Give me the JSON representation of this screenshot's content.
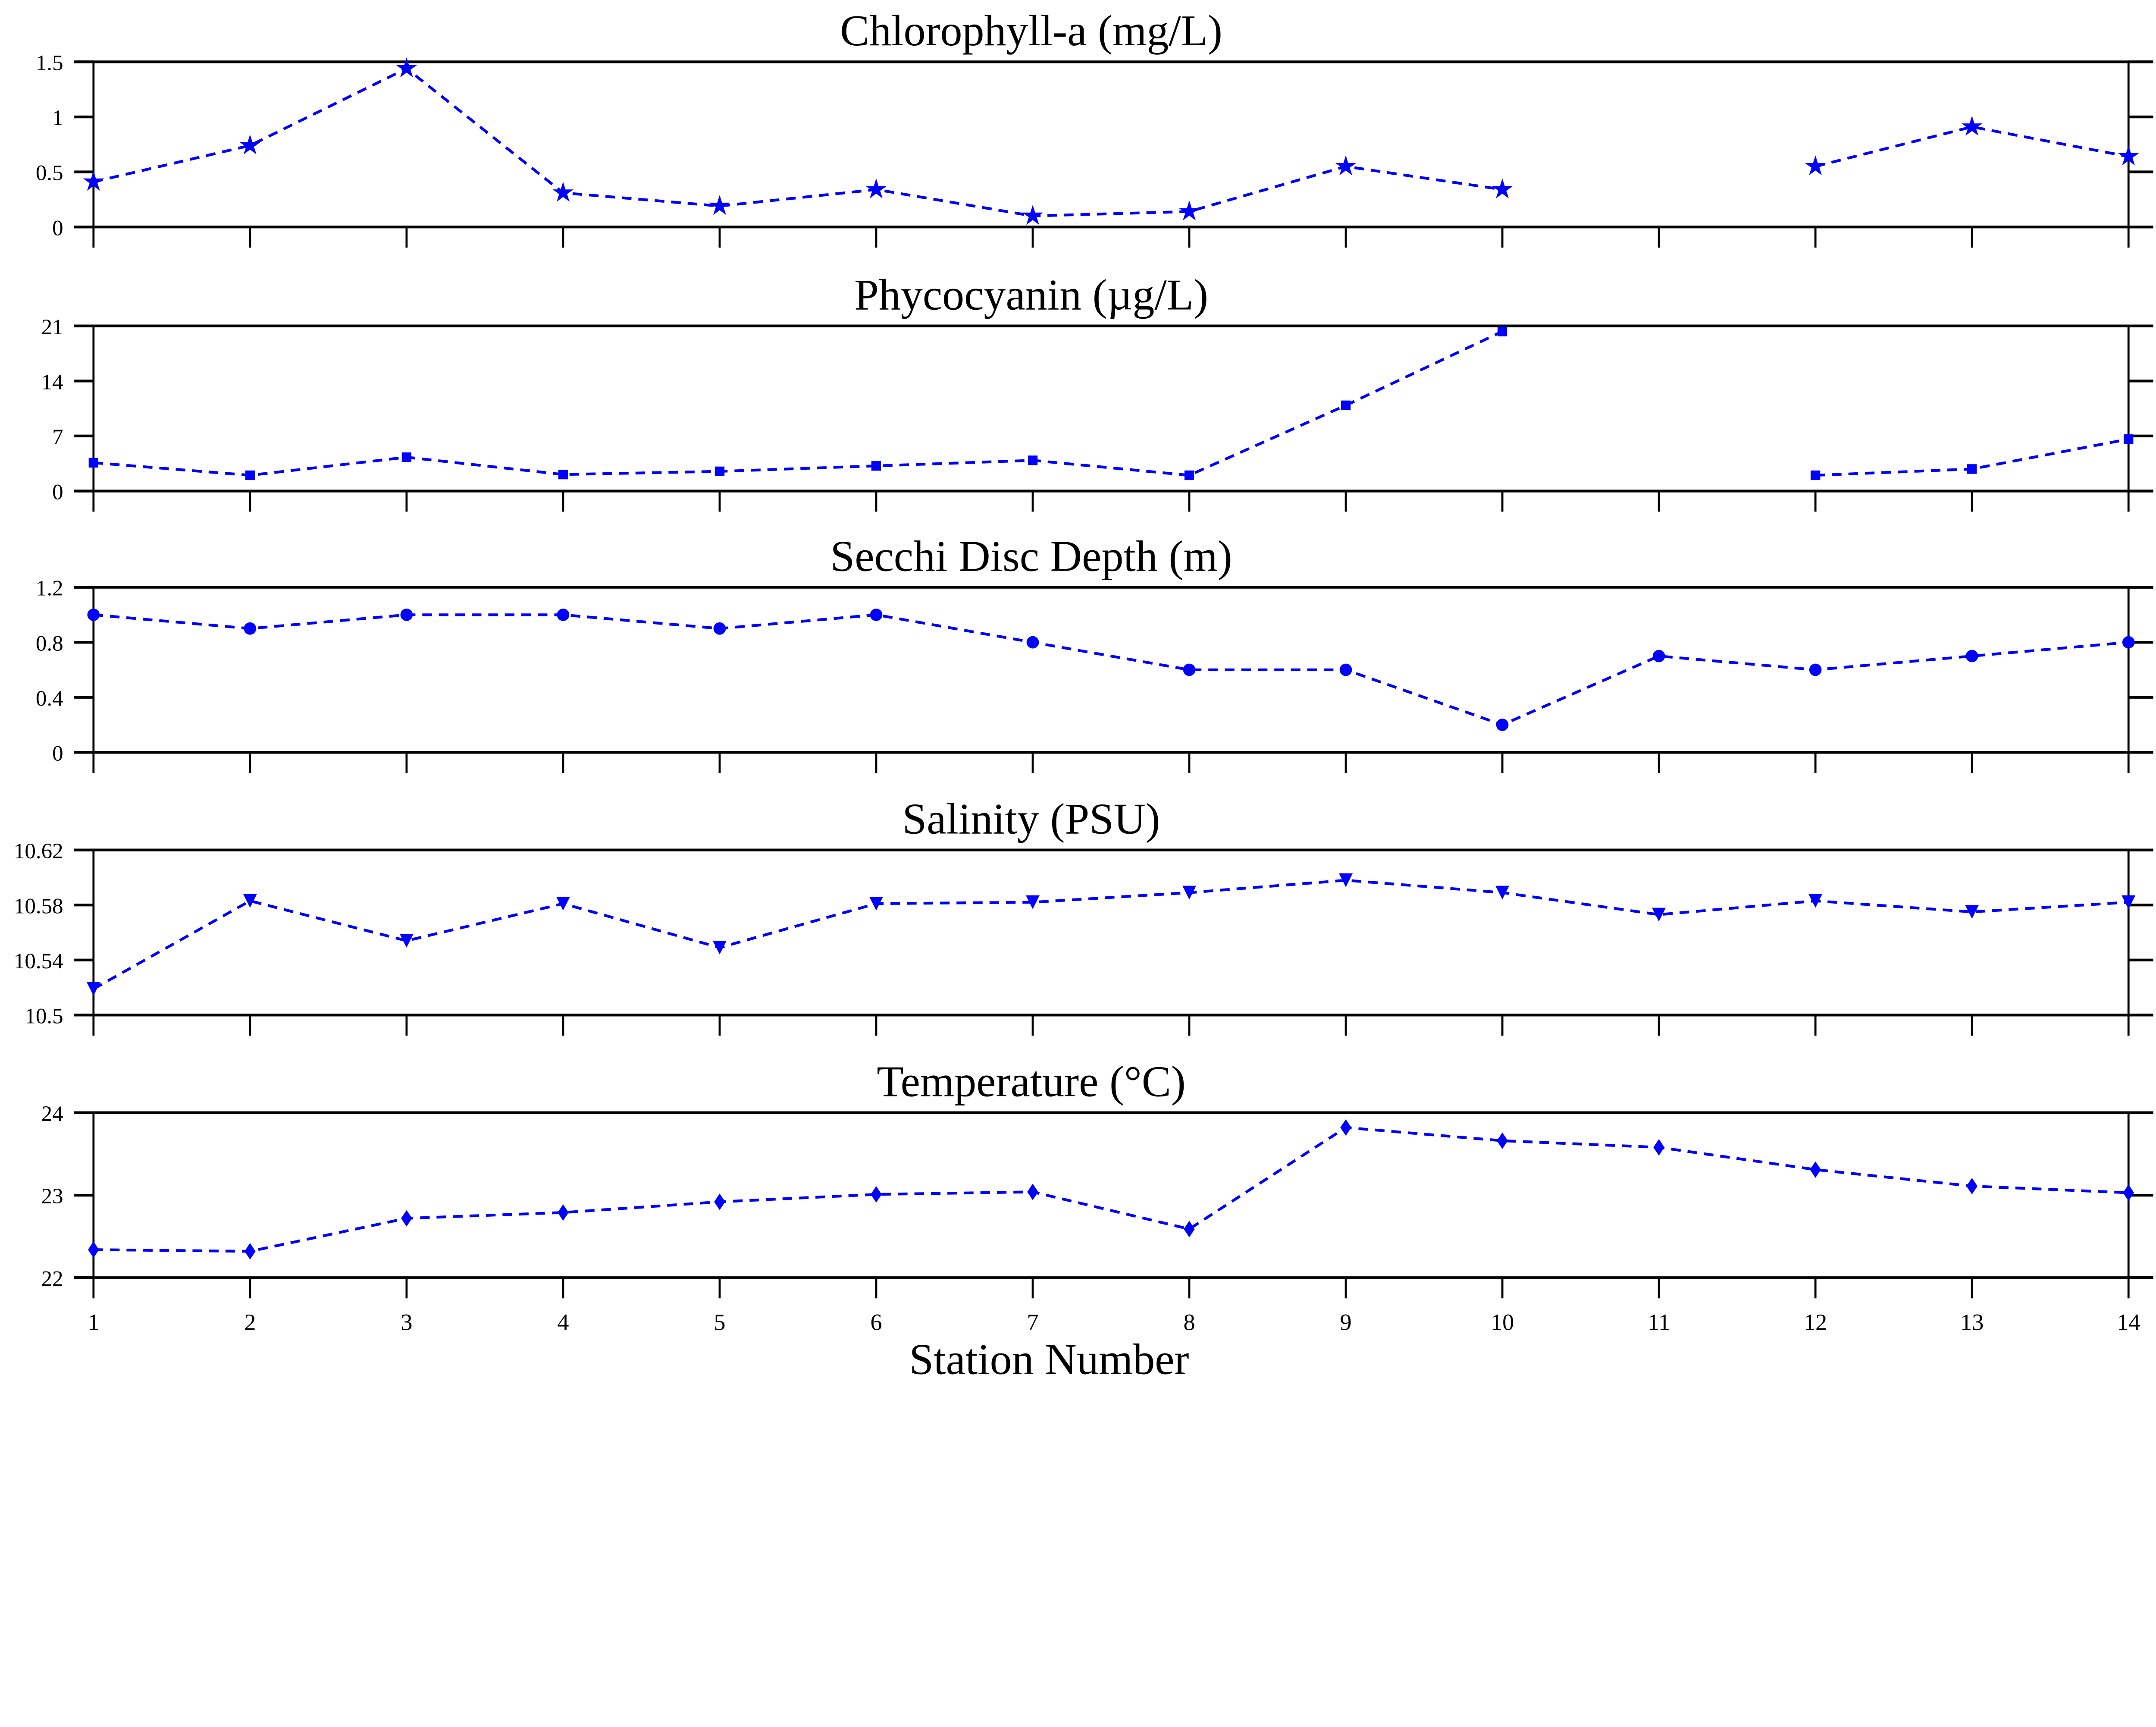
{
  "chart_data": [
    {
      "type": "line",
      "title": "Chlorophyll-a (mg/L)",
      "marker": "star",
      "ylim": [
        0,
        1.5
      ],
      "yticks": [
        "0",
        "0.5",
        "1",
        "1.5"
      ],
      "ytick_values": [
        0,
        0.5,
        1,
        1.5
      ],
      "x": [
        1,
        2,
        3,
        4,
        5,
        6,
        7,
        8,
        9,
        10,
        11,
        12,
        13,
        14
      ],
      "values": [
        0.41,
        0.74,
        1.44,
        0.31,
        0.19,
        0.34,
        0.1,
        0.14,
        0.55,
        0.34,
        null,
        0.55,
        0.91,
        0.64
      ]
    },
    {
      "type": "line",
      "title": "Phycocyanin (µg/L)",
      "marker": "square",
      "ylim": [
        0,
        21
      ],
      "yticks": [
        "0",
        "7",
        "14",
        "21"
      ],
      "ytick_values": [
        0,
        7,
        14,
        21
      ],
      "x": [
        1,
        2,
        3,
        4,
        5,
        6,
        7,
        8,
        9,
        10,
        11,
        12,
        13,
        14
      ],
      "values": [
        3.6,
        2.0,
        4.3,
        2.1,
        2.5,
        3.2,
        3.9,
        2.0,
        10.9,
        20.3,
        null,
        2.0,
        2.8,
        6.6
      ]
    },
    {
      "type": "line",
      "title": "Secchi Disc Depth (m)",
      "marker": "circle",
      "ylim": [
        0,
        1.2
      ],
      "yticks": [
        "0",
        "0.4",
        "0.8",
        "1.2"
      ],
      "ytick_values": [
        0,
        0.4,
        0.8,
        1.2
      ],
      "x": [
        1,
        2,
        3,
        4,
        5,
        6,
        7,
        8,
        9,
        10,
        11,
        12,
        13,
        14
      ],
      "values": [
        1.0,
        0.9,
        1.0,
        1.0,
        0.9,
        1.0,
        0.8,
        0.6,
        0.6,
        0.2,
        0.7,
        0.6,
        0.7,
        0.8
      ]
    },
    {
      "type": "line",
      "title": "Salinity (PSU)",
      "marker": "triangle-down",
      "ylim": [
        10.5,
        10.62
      ],
      "yticks": [
        "10.5",
        "10.54",
        "10.58",
        "10.62"
      ],
      "ytick_values": [
        10.5,
        10.54,
        10.58,
        10.62
      ],
      "x": [
        1,
        2,
        3,
        4,
        5,
        6,
        7,
        8,
        9,
        10,
        11,
        12,
        13,
        14
      ],
      "values": [
        10.519,
        10.583,
        10.554,
        10.581,
        10.549,
        10.581,
        10.582,
        10.589,
        10.598,
        10.589,
        10.573,
        10.583,
        10.575,
        10.582
      ]
    },
    {
      "type": "line",
      "title": "Temperature (°C)",
      "marker": "diamond",
      "ylim": [
        22,
        24
      ],
      "yticks": [
        "22",
        "23",
        "24"
      ],
      "ytick_values": [
        22,
        23,
        24
      ],
      "x": [
        1,
        2,
        3,
        4,
        5,
        6,
        7,
        8,
        9,
        10,
        11,
        12,
        13,
        14
      ],
      "values": [
        22.34,
        22.32,
        22.72,
        22.79,
        22.92,
        23.01,
        23.04,
        22.59,
        23.82,
        23.66,
        23.58,
        23.31,
        23.11,
        23.03
      ]
    }
  ],
  "xaxis": {
    "label": "Station Number",
    "ticks": [
      "1",
      "2",
      "3",
      "4",
      "5",
      "6",
      "7",
      "8",
      "9",
      "10",
      "11",
      "12",
      "13",
      "14"
    ],
    "xlim": [
      1,
      14
    ]
  },
  "colors": {
    "series": "#0000ff",
    "axes": "#000000"
  }
}
